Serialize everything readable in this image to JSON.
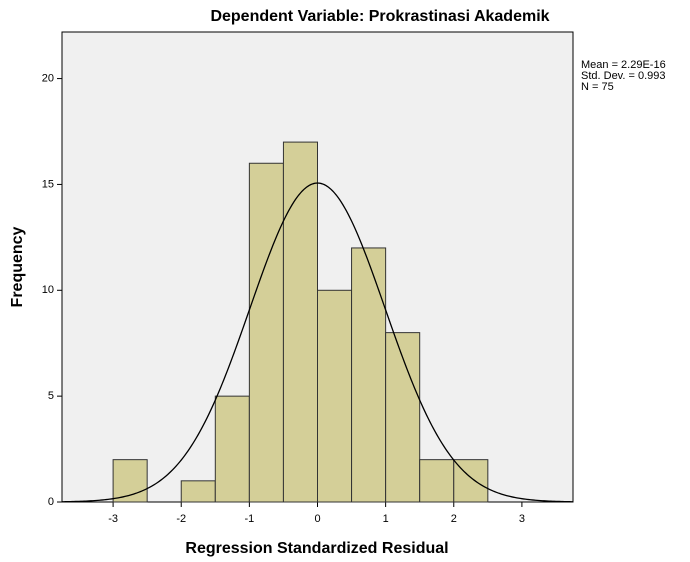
{
  "chart_data": {
    "type": "histogram",
    "title": "Dependent Variable: Prokrastinasi Akademik",
    "x_label": "Regression Standardized Residual",
    "y_label": "Frequency",
    "bins": [
      -3,
      -2.5,
      -2,
      -1.5,
      -1,
      -0.5,
      0,
      0.5,
      1,
      1.5,
      2,
      2.5
    ],
    "values": [
      2,
      0,
      1,
      5,
      16,
      17,
      10,
      12,
      8,
      2,
      2
    ],
    "color": "#d4cf98",
    "xlim": [
      -3.75,
      3.75
    ],
    "xticks": [
      -3,
      -2,
      -1,
      0,
      1,
      2,
      3
    ],
    "ylim": [
      0,
      22.2
    ],
    "yticks": [
      0,
      5,
      10,
      15,
      20
    ],
    "stats": [
      {
        "value": 2.29e-16,
        "label": "Mean = 2.29E-16"
      },
      {
        "value": 0.993,
        "label": "Std. Dev. = 0.993"
      },
      {
        "value": 75,
        "label": "N = 75"
      }
    ],
    "normal_curve": true
  }
}
